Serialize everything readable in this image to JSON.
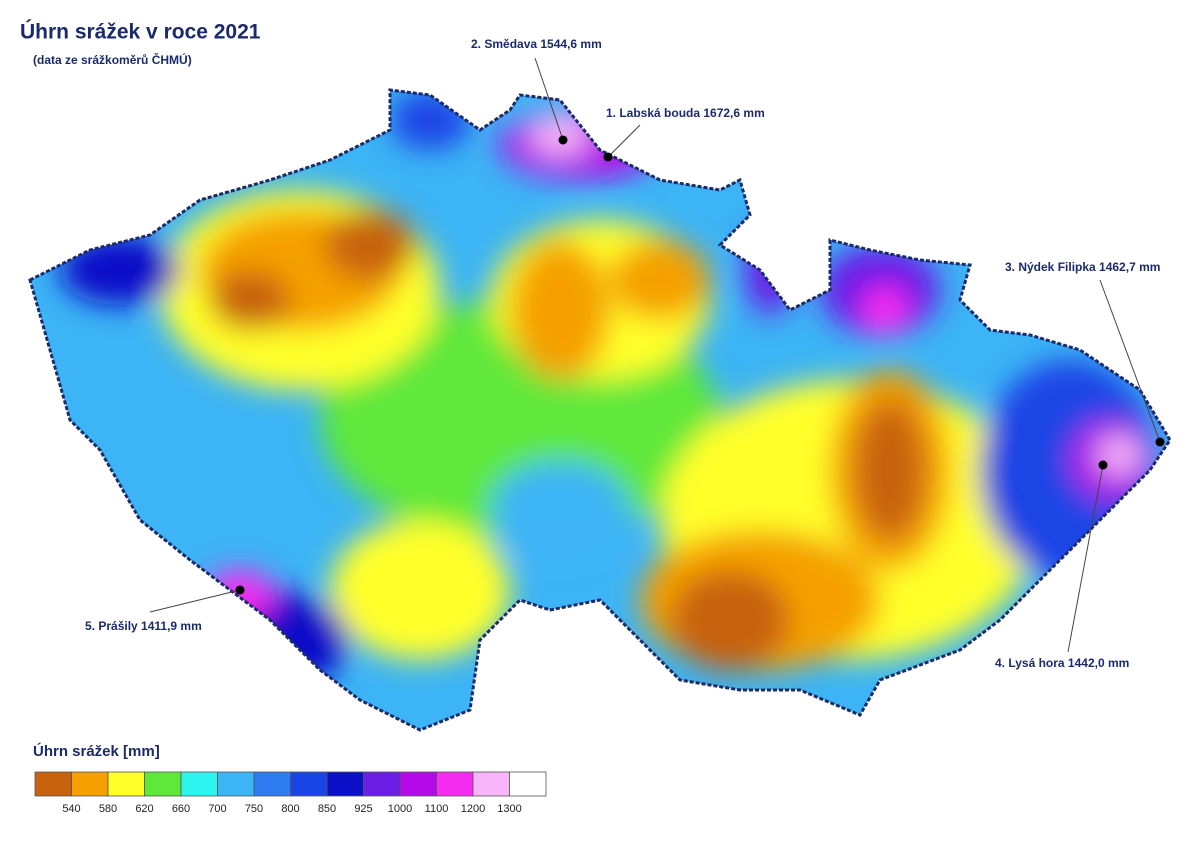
{
  "header": {
    "title": "Úhrn srážek v roce 2021",
    "subtitle": "(data ze srážkoměrů ČHMÚ)"
  },
  "stations": [
    {
      "label": "1. Labská bouda 1672,6 mm"
    },
    {
      "label": "2. Smědava 1544,6 mm"
    },
    {
      "label": "3. Nýdek Filipka 1462,7 mm"
    },
    {
      "label": "4. Lysá hora 1442,0 mm"
    },
    {
      "label": "5. Prášily 1411,9 mm"
    }
  ],
  "legend": {
    "title": "Úhrn srážek [mm]",
    "ticks": [
      540,
      580,
      620,
      660,
      700,
      750,
      800,
      850,
      925,
      1000,
      1100,
      1200,
      1300
    ],
    "colors": [
      "#c8620c",
      "#f5a000",
      "#ffff2a",
      "#5fe83a",
      "#2cf5f0",
      "#3cb4f5",
      "#2f7cf2",
      "#1a45e6",
      "#0c10c8",
      "#6a1ee6",
      "#b40ae8",
      "#f52cf0",
      "#f8b4f8",
      "#ffffff"
    ]
  }
}
